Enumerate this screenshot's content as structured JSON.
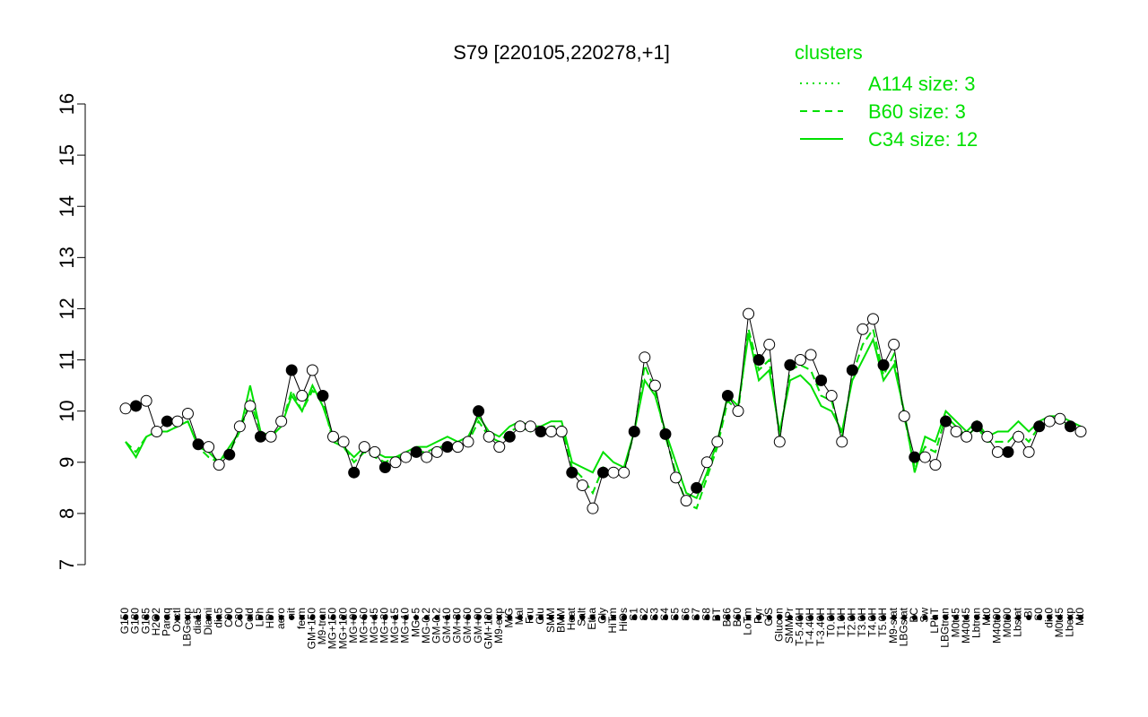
{
  "chart_data": {
    "type": "line",
    "title": "S79 [220105,220278,+1]",
    "xlabel": "",
    "ylabel": "",
    "ylim": [
      7,
      16
    ],
    "yticks": [
      7,
      8,
      9,
      10,
      11,
      12,
      13,
      14,
      15,
      16
    ],
    "x_tick_labels": [
      "G150",
      "G180",
      "G135",
      "H2O2",
      "Paraq",
      "Oxctl",
      "LBGexp",
      "dia15",
      "Diami",
      "dia5",
      "C90",
      "C30",
      "Cold",
      "LPh",
      "HPh",
      "aero",
      "nit",
      "ferm",
      "GM+150",
      "M9-tran",
      "MG+150",
      "MG+120",
      "MG+90",
      "MG+60",
      "MG+45",
      "MG+30",
      "MG+15",
      "MG+10",
      "MG+5",
      "MG-0.2",
      "GM-0.2",
      "GM+10",
      "GM+30",
      "GM+60",
      "GM+90",
      "GM+120",
      "M9-exp",
      "M/G",
      "Mal",
      "Fru",
      "Glu",
      "SMM",
      "BMM",
      "Heat",
      "Salt",
      "Etha",
      "Gly",
      "HiTm",
      "HiOs",
      "S1",
      "S2",
      "S3",
      "S4",
      "S5",
      "S6",
      "S7",
      "S8",
      "BT",
      "B36",
      "B60",
      "LoTm",
      "Pyr",
      "G/S",
      "Glucon",
      "SMMPr",
      "T-5.40H",
      "T-4.40H",
      "T-3.40H",
      "T0.0H",
      "T1.0H",
      "T2.0H",
      "T3.0H",
      "T4.0H",
      "T5.0H",
      "M9-stat",
      "LBGstat",
      "BC",
      "Sw",
      "LPhT",
      "LBGtran",
      "M0t45",
      "M40t45",
      "Lbtran",
      "Mt0",
      "M40t90",
      "M0t90",
      "Lbstat",
      "BI",
      "S0",
      "dia0",
      "M0t45",
      "Lbexp",
      "Mt0"
    ],
    "series": [
      {
        "name": "",
        "style": "points",
        "values": [
          10.05,
          10.1,
          10.2,
          9.6,
          9.8,
          9.8,
          9.95,
          9.35,
          9.3,
          8.95,
          9.15,
          9.7,
          10.1,
          9.5,
          9.5,
          9.8,
          10.8,
          10.3,
          10.8,
          10.3,
          9.5,
          9.4,
          8.8,
          9.3,
          9.2,
          8.9,
          9.0,
          9.1,
          9.2,
          9.1,
          9.2,
          9.3,
          9.3,
          9.4,
          10.0,
          9.5,
          9.3,
          9.5,
          9.7,
          9.7,
          9.6,
          9.6,
          9.6,
          8.8,
          8.55,
          8.1,
          8.8,
          8.8,
          8.8,
          9.6,
          11.05,
          10.5,
          9.55,
          8.7,
          8.25,
          8.5,
          9.0,
          9.4,
          10.3,
          10.0,
          11.9,
          11.0,
          11.3,
          9.4,
          10.9,
          11.0,
          11.1,
          10.6,
          10.3,
          9.4,
          10.8,
          11.6,
          11.8,
          10.9,
          11.3,
          9.9,
          9.1,
          9.1,
          8.95,
          9.8,
          9.6,
          9.5,
          9.7,
          9.5,
          9.2,
          9.2,
          9.5,
          9.2,
          9.7,
          9.8,
          9.85,
          9.7,
          9.6
        ]
      },
      {
        "name": "C34 size: 12",
        "style": "solid",
        "values": [
          9.4,
          9.1,
          9.5,
          9.6,
          9.6,
          9.7,
          9.8,
          9.3,
          9.2,
          9.0,
          9.3,
          9.6,
          10.5,
          9.6,
          9.5,
          9.7,
          10.3,
          10.0,
          10.5,
          10.1,
          9.5,
          9.3,
          9.1,
          9.3,
          9.2,
          9.1,
          9.1,
          9.2,
          9.3,
          9.3,
          9.4,
          9.5,
          9.4,
          9.5,
          9.9,
          9.6,
          9.5,
          9.7,
          9.8,
          9.7,
          9.7,
          9.8,
          9.8,
          9.0,
          8.9,
          8.8,
          9.2,
          9.0,
          8.9,
          9.6,
          10.6,
          10.3,
          9.6,
          9.0,
          8.4,
          8.3,
          8.8,
          9.4,
          10.3,
          10.1,
          11.5,
          10.6,
          10.8,
          9.6,
          10.6,
          10.7,
          10.5,
          10.1,
          10.0,
          9.6,
          10.6,
          11.0,
          11.4,
          10.6,
          10.9,
          10.0,
          8.8,
          9.5,
          9.4,
          10.0,
          9.8,
          9.6,
          9.8,
          9.5,
          9.6,
          9.6,
          9.8,
          9.6,
          9.8,
          9.9,
          9.9,
          9.8,
          9.7
        ]
      },
      {
        "name": "B60 size: 3",
        "style": "dashed",
        "values": [
          9.4,
          9.2,
          9.5,
          9.6,
          9.6,
          9.7,
          9.8,
          9.3,
          9.1,
          9.0,
          9.2,
          9.6,
          10.2,
          9.6,
          9.5,
          9.7,
          10.4,
          10.0,
          10.4,
          10.2,
          9.4,
          9.3,
          9.0,
          9.2,
          9.1,
          9.0,
          9.1,
          9.1,
          9.2,
          9.2,
          9.3,
          9.3,
          9.3,
          9.4,
          9.8,
          9.5,
          9.4,
          9.6,
          9.7,
          9.6,
          9.6,
          9.7,
          9.7,
          8.9,
          8.7,
          8.4,
          8.9,
          8.8,
          8.8,
          9.6,
          10.9,
          10.4,
          9.5,
          8.8,
          8.2,
          8.1,
          8.7,
          9.3,
          10.2,
          10.0,
          11.6,
          10.8,
          11.0,
          9.5,
          10.8,
          10.9,
          10.8,
          10.3,
          10.2,
          9.5,
          10.7,
          11.3,
          11.6,
          10.7,
          11.1,
          9.9,
          8.9,
          9.3,
          9.2,
          9.9,
          9.7,
          9.5,
          9.7,
          9.4,
          9.4,
          9.4,
          9.6,
          9.4,
          9.7,
          9.8,
          9.8,
          9.7,
          9.6
        ]
      },
      {
        "name": "A114 size: 3",
        "style": "dotted",
        "values": [
          9.4,
          9.2,
          9.5,
          9.6,
          9.6,
          9.7,
          9.8,
          9.3,
          9.1,
          9.0,
          9.2,
          9.6,
          10.2,
          9.6,
          9.5,
          9.7,
          10.4,
          10.0,
          10.4,
          10.2,
          9.4,
          9.3,
          9.0,
          9.2,
          9.1,
          9.0,
          9.1,
          9.1,
          9.2,
          9.2,
          9.3,
          9.3,
          9.3,
          9.4,
          9.8,
          9.5,
          9.4,
          9.6,
          9.7,
          9.6,
          9.6,
          9.7,
          9.7,
          8.9,
          8.7,
          8.4,
          8.9,
          8.8,
          8.8,
          9.6,
          10.9,
          10.4,
          9.5,
          8.8,
          8.2,
          8.1,
          8.7,
          9.3,
          10.2,
          10.0,
          11.6,
          10.8,
          11.0,
          9.5,
          10.8,
          10.9,
          10.8,
          10.3,
          10.2,
          9.5,
          10.7,
          11.3,
          11.6,
          10.7,
          11.1,
          9.9,
          8.9,
          9.3,
          9.2,
          9.9,
          9.7,
          9.5,
          9.7,
          9.4,
          9.4,
          9.4,
          9.6,
          9.4,
          9.7,
          9.8,
          9.8,
          9.7,
          9.6
        ]
      }
    ],
    "legend": {
      "title": "clusters",
      "position": "top-right",
      "entries": [
        {
          "label": "A114 size: 3",
          "style": "dotted"
        },
        {
          "label": "B60 size: 3",
          "style": "dashed"
        },
        {
          "label": "C34 size: 12",
          "style": "solid"
        }
      ]
    },
    "colors": {
      "line": "#00e000",
      "points_fill": "#ffffff",
      "points_filled": "#000000",
      "axis": "#000000"
    }
  }
}
